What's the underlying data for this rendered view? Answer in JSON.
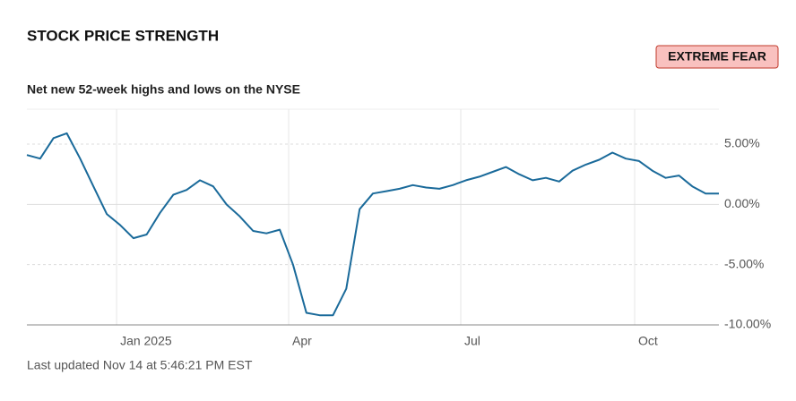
{
  "chart_data": {
    "type": "line",
    "title": "STOCK PRICE STRENGTH",
    "badge": "EXTREME FEAR",
    "subtitle": "Net new 52-week highs and lows on the NYSE",
    "footnote": "Last updated Nov 14 at 5:46:21 PM EST",
    "color": "#1a6a9a",
    "values": [
      4.1,
      3.8,
      5.5,
      5.9,
      3.8,
      1.5,
      -0.8,
      -1.7,
      -2.8,
      -2.5,
      -0.7,
      0.8,
      1.2,
      2.0,
      1.5,
      0.0,
      -1.0,
      -2.2,
      -2.4,
      -2.1,
      -5.0,
      -9.0,
      -9.2,
      -9.2,
      -7.0,
      -0.4,
      0.9,
      1.1,
      1.3,
      1.6,
      1.4,
      1.3,
      1.6,
      2.0,
      2.3,
      2.7,
      3.1,
      2.5,
      2.0,
      2.2,
      1.9,
      2.8,
      3.3,
      3.7,
      4.3,
      3.8,
      3.6,
      2.8,
      2.2,
      2.4,
      1.5,
      0.9,
      0.9
    ],
    "xlim": [
      0,
      52
    ],
    "xticks": [
      {
        "value": 6.74,
        "label": "Jan 2025"
      },
      {
        "value": 19.67,
        "label": "Apr"
      },
      {
        "value": 32.6,
        "label": "Jul"
      },
      {
        "value": 45.67,
        "label": "Oct"
      }
    ],
    "ylim": [
      -10,
      7.9
    ],
    "yticks": [
      {
        "value": -10,
        "label": "-10.00%"
      },
      {
        "value": -5,
        "label": "-5.00%"
      },
      {
        "value": 0,
        "label": "0.00%"
      },
      {
        "value": 5,
        "label": "5.00%"
      }
    ],
    "grid": true
  }
}
